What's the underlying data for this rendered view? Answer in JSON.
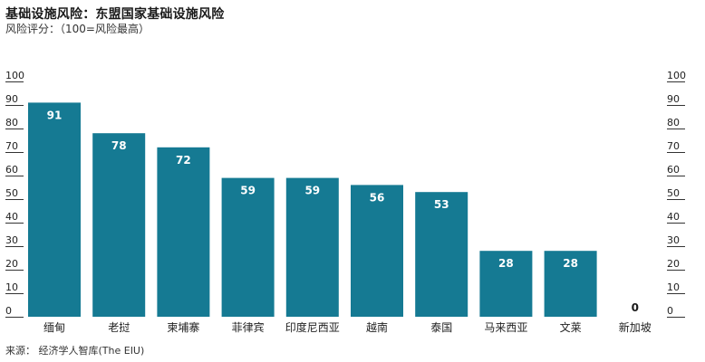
{
  "header": {
    "title": "基础设施风险：东盟国家基础设施风险",
    "subtitle": "风险评分：（100=风险最高）"
  },
  "footer": {
    "source": "来源： 经济学人智库(The EIU)"
  },
  "colors": {
    "bar": "#157a93",
    "label_on_bar": "#ffffff",
    "label_off_bar": "#1a1a1a",
    "axis_tick": "#333333"
  },
  "chart_data": {
    "type": "bar",
    "categories": [
      "缅甸",
      "老挝",
      "柬埔寨",
      "菲律宾",
      "印度尼西亚",
      "越南",
      "泰国",
      "马来西亚",
      "文莱",
      "新加坡"
    ],
    "values": [
      91,
      78,
      72,
      59,
      59,
      56,
      53,
      28,
      28,
      0
    ],
    "ylim": [
      0,
      100
    ],
    "yticks": [
      0,
      10,
      20,
      30,
      40,
      50,
      60,
      70,
      80,
      90,
      100
    ],
    "axis_left": true,
    "axis_right": true,
    "grid": false,
    "data_labels": true
  }
}
